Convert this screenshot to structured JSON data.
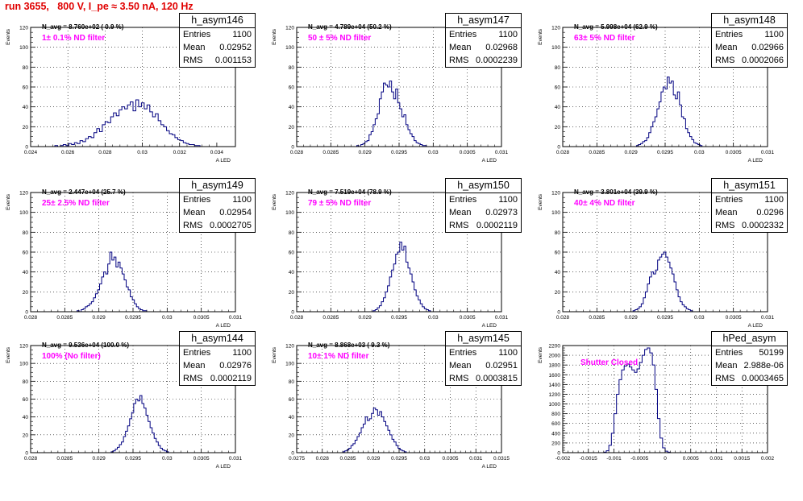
{
  "page": {
    "run_title": "run 3655,   800 V, I_pe ≈ 3.50 nA, 120 Hz"
  },
  "colors": {
    "histogram": "#000080",
    "filter_text": "#ff00ff",
    "title": "#e00000"
  },
  "chart_data": [
    {
      "type": "histogram",
      "stats_name": "h_asym146",
      "entries": "1100",
      "mean": "0.02952",
      "rms": "0.001153",
      "navg_text": "N_avg = 8.760e+02 ( 0.9 %)",
      "filter_text": "1± 0.1% ND filter",
      "xlabel": "A_LED",
      "ylabel": "Events",
      "xlim": [
        0.024,
        0.035
      ],
      "ylim": [
        0,
        120
      ],
      "xticks": [
        "0.024",
        "0.026",
        "0.028",
        "0.03",
        "0.032",
        "0.034"
      ],
      "xtick_values": [
        0.024,
        0.026,
        0.028,
        0.03,
        0.032,
        0.034
      ],
      "yticks": [
        "0",
        "20",
        "40",
        "60",
        "80",
        "100",
        "120"
      ],
      "ytick_values": [
        0,
        20,
        40,
        60,
        80,
        100,
        120
      ],
      "bins": {
        "start": 0.0253,
        "width": 0.00015,
        "counts": [
          1,
          0,
          1,
          2,
          1,
          3,
          2,
          4,
          3,
          6,
          5,
          8,
          10,
          9,
          14,
          18,
          15,
          22,
          25,
          24,
          30,
          34,
          31,
          37,
          40,
          38,
          42,
          45,
          36,
          47,
          40,
          44,
          38,
          42,
          35,
          30,
          33,
          26,
          22,
          20,
          16,
          13,
          12,
          9,
          7,
          6,
          4,
          3,
          2,
          2,
          1,
          1
        ]
      }
    },
    {
      "type": "histogram",
      "stats_name": "h_asym147",
      "entries": "1100",
      "mean": "0.02968",
      "rms": "0.0002239",
      "navg_text": "N_avg = 4.789e+04 (50.2 %)",
      "filter_text": "50 ± 5% ND filter",
      "xlabel": "A_LED",
      "ylabel": "Events",
      "xlim": [
        0.028,
        0.031
      ],
      "ylim": [
        0,
        120
      ],
      "xticks": [
        "0.028",
        "0.0285",
        "0.029",
        "0.0295",
        "0.03",
        "0.0305",
        "0.031"
      ],
      "xtick_values": [
        0.028,
        0.0285,
        0.029,
        0.0295,
        0.03,
        0.0305,
        0.031
      ],
      "yticks": [
        "0",
        "20",
        "40",
        "60",
        "80",
        "100",
        "120"
      ],
      "ytick_values": [
        0,
        20,
        40,
        60,
        80,
        100,
        120
      ],
      "bins": {
        "start": 0.02888,
        "width": 3e-05,
        "counts": [
          1,
          0,
          2,
          3,
          5,
          6,
          12,
          15,
          22,
          28,
          33,
          48,
          55,
          64,
          62,
          60,
          66,
          55,
          48,
          58,
          44,
          38,
          30,
          32,
          22,
          17,
          13,
          10,
          6,
          4,
          3,
          2,
          1,
          1
        ]
      }
    },
    {
      "type": "histogram",
      "stats_name": "h_asym148",
      "entries": "1100",
      "mean": "0.02966",
      "rms": "0.0002066",
      "navg_text": "N_avg = 5.998e+04 (62.9 %)",
      "filter_text": "63± 5% ND filter",
      "xlabel": "A_LED",
      "ylabel": "Events",
      "xlim": [
        0.028,
        0.031
      ],
      "ylim": [
        0,
        120
      ],
      "xticks": [
        "0.028",
        "0.0285",
        "0.029",
        "0.0295",
        "0.03",
        "0.0305",
        "0.031"
      ],
      "xtick_values": [
        0.028,
        0.0285,
        0.029,
        0.0295,
        0.03,
        0.0305,
        0.031
      ],
      "yticks": [
        "0",
        "20",
        "40",
        "60",
        "80",
        "100",
        "120"
      ],
      "ytick_values": [
        0,
        20,
        40,
        60,
        80,
        100,
        120
      ],
      "bins": {
        "start": 0.02908,
        "width": 3e-05,
        "counts": [
          1,
          2,
          3,
          5,
          6,
          9,
          14,
          20,
          25,
          30,
          38,
          45,
          55,
          60,
          58,
          70,
          64,
          66,
          52,
          48,
          55,
          42,
          30,
          28,
          18,
          14,
          10,
          7,
          4,
          3,
          2,
          1
        ]
      }
    },
    {
      "type": "histogram",
      "stats_name": "h_asym149",
      "entries": "1100",
      "mean": "0.02954",
      "rms": "0.0002705",
      "navg_text": "N_avg = 2.447e+04 (25.7 %)",
      "filter_text": "25± 2.5% ND filter",
      "xlabel": "A_LED",
      "ylabel": "Events",
      "xlim": [
        0.028,
        0.031
      ],
      "ylim": [
        0,
        120
      ],
      "xticks": [
        "0.028",
        "0.0285",
        "0.029",
        "0.0295",
        "0.03",
        "0.0305",
        "0.031"
      ],
      "xtick_values": [
        0.028,
        0.0285,
        0.029,
        0.0295,
        0.03,
        0.0305,
        0.031
      ],
      "yticks": [
        "0",
        "20",
        "40",
        "60",
        "80",
        "100",
        "120"
      ],
      "ytick_values": [
        0,
        20,
        40,
        60,
        80,
        100,
        120
      ],
      "bins": {
        "start": 0.02868,
        "width": 3e-05,
        "counts": [
          1,
          0,
          2,
          3,
          5,
          6,
          8,
          10,
          14,
          18,
          22,
          28,
          35,
          40,
          38,
          48,
          60,
          52,
          55,
          45,
          50,
          44,
          38,
          32,
          25,
          22,
          15,
          12,
          8,
          5,
          3,
          2,
          1,
          1
        ]
      }
    },
    {
      "type": "histogram",
      "stats_name": "h_asym150",
      "entries": "1100",
      "mean": "0.02973",
      "rms": "0.0002119",
      "navg_text": "N_avg = 7.519e+04 (78.9 %)",
      "filter_text": "79 ± 5% ND filter",
      "xlabel": "A_LED",
      "ylabel": "Events",
      "xlim": [
        0.028,
        0.031
      ],
      "ylim": [
        0,
        120
      ],
      "xticks": [
        "0.028",
        "0.0285",
        "0.029",
        "0.0295",
        "0.03",
        "0.0305",
        "0.031"
      ],
      "xtick_values": [
        0.028,
        0.0285,
        0.029,
        0.0295,
        0.03,
        0.0305,
        0.031
      ],
      "yticks": [
        "0",
        "20",
        "40",
        "60",
        "80",
        "100",
        "120"
      ],
      "ytick_values": [
        0,
        20,
        40,
        60,
        80,
        100,
        120
      ],
      "bins": {
        "start": 0.02912,
        "width": 3e-05,
        "counts": [
          1,
          2,
          4,
          6,
          10,
          14,
          20,
          26,
          35,
          42,
          48,
          58,
          60,
          70,
          62,
          66,
          50,
          44,
          38,
          30,
          22,
          16,
          12,
          8,
          5,
          3,
          2,
          1
        ]
      }
    },
    {
      "type": "histogram",
      "stats_name": "h_asym151",
      "entries": "1100",
      "mean": "0.0296",
      "rms": "0.0002332",
      "navg_text": "N_avg = 3.801e+04 (39.9 %)",
      "filter_text": "40± 4% ND filter",
      "xlabel": "A_LED",
      "ylabel": "Events",
      "xlim": [
        0.028,
        0.031
      ],
      "ylim": [
        0,
        120
      ],
      "xticks": [
        "0.028",
        "0.0285",
        "0.029",
        "0.0295",
        "0.03",
        "0.0305",
        "0.031"
      ],
      "xtick_values": [
        0.028,
        0.0285,
        0.029,
        0.0295,
        0.03,
        0.0305,
        0.031
      ],
      "yticks": [
        "0",
        "20",
        "40",
        "60",
        "80",
        "100",
        "120"
      ],
      "ytick_values": [
        0,
        20,
        40,
        60,
        80,
        100,
        120
      ],
      "bins": {
        "start": 0.02903,
        "width": 3e-05,
        "counts": [
          1,
          2,
          3,
          5,
          8,
          14,
          20,
          28,
          35,
          40,
          38,
          42,
          52,
          55,
          58,
          60,
          55,
          50,
          44,
          38,
          30,
          22,
          15,
          10,
          7,
          5,
          3,
          2,
          1
        ]
      }
    },
    {
      "type": "histogram",
      "stats_name": "h_asym144",
      "entries": "1100",
      "mean": "0.02976",
      "rms": "0.0002119",
      "navg_text": "N_avg = 9.536e+04 (100.0 %)",
      "filter_text": "100% (No filter)",
      "xlabel": "A_LED",
      "ylabel": "Events",
      "xlim": [
        0.028,
        0.031
      ],
      "ylim": [
        0,
        120
      ],
      "xticks": [
        "0.028",
        "0.0285",
        "0.029",
        "0.0295",
        "0.03",
        "0.0305",
        "0.031"
      ],
      "xtick_values": [
        0.028,
        0.0285,
        0.029,
        0.0295,
        0.03,
        0.0305,
        0.031
      ],
      "yticks": [
        "0",
        "20",
        "40",
        "60",
        "80",
        "100",
        "120"
      ],
      "ytick_values": [
        0,
        20,
        40,
        60,
        80,
        100,
        120
      ],
      "bins": {
        "start": 0.02918,
        "width": 3e-05,
        "counts": [
          1,
          2,
          4,
          6,
          9,
          12,
          18,
          24,
          30,
          38,
          45,
          55,
          60,
          58,
          64,
          55,
          50,
          42,
          35,
          28,
          22,
          16,
          12,
          8,
          5,
          3,
          2,
          1
        ]
      }
    },
    {
      "type": "histogram",
      "stats_name": "h_asym145",
      "entries": "1100",
      "mean": "0.02951",
      "rms": "0.0003815",
      "navg_text": "N_avg = 8.868e+03 ( 9.3 %)",
      "filter_text": "10± 1% ND filter",
      "xlabel": "A_LED",
      "ylabel": "Events",
      "xlim": [
        0.0275,
        0.0315
      ],
      "ylim": [
        0,
        120
      ],
      "xticks": [
        "0.0275",
        "0.028",
        "0.0285",
        "0.029",
        "0.0295",
        "0.03",
        "0.0305",
        "0.031",
        "0.0315"
      ],
      "xtick_values": [
        0.0275,
        0.028,
        0.0285,
        0.029,
        0.0295,
        0.03,
        0.0305,
        0.031,
        0.0315
      ],
      "yticks": [
        "0",
        "20",
        "40",
        "60",
        "80",
        "100",
        "120"
      ],
      "ytick_values": [
        0,
        20,
        40,
        60,
        80,
        100,
        120
      ],
      "bins": {
        "start": 0.0284,
        "width": 4e-05,
        "counts": [
          1,
          2,
          3,
          5,
          8,
          10,
          14,
          18,
          22,
          28,
          32,
          40,
          36,
          38,
          44,
          50,
          48,
          42,
          46,
          40,
          35,
          30,
          25,
          20,
          15,
          12,
          8,
          5,
          3,
          2,
          1
        ]
      }
    },
    {
      "type": "histogram",
      "stats_name": "hPed_asym",
      "entries": "50199",
      "mean": "2.988e-06",
      "rms": "0.0003465",
      "navg_text": "",
      "filter_text": "Shutter Closed",
      "xlabel": "",
      "ylabel": "Events",
      "xlim": [
        -0.002,
        0.002
      ],
      "ylim": [
        0,
        2200
      ],
      "xticks": [
        "-0.002",
        "-0.0015",
        "-0.001",
        "-0.0005",
        "0",
        "0.0005",
        "0.001",
        "0.0015",
        "0.002"
      ],
      "xtick_values": [
        -0.002,
        -0.0015,
        -0.001,
        -0.0005,
        0,
        0.0005,
        0.001,
        0.0015,
        0.002
      ],
      "yticks": [
        "0",
        "200",
        "400",
        "600",
        "800",
        "1000",
        "1200",
        "1400",
        "1600",
        "1800",
        "2000",
        "2200"
      ],
      "ytick_values": [
        0,
        200,
        400,
        600,
        800,
        1000,
        1200,
        1400,
        1600,
        1800,
        2000,
        2200
      ],
      "bins": {
        "start": -0.0012,
        "width": 5e-05,
        "counts": [
          10,
          40,
          150,
          400,
          800,
          1200,
          1500,
          1700,
          1780,
          1820,
          1760,
          1700,
          1650,
          1720,
          1850,
          2000,
          2120,
          2150,
          2050,
          1800,
          1300,
          700,
          300,
          100,
          30,
          10
        ]
      }
    }
  ]
}
